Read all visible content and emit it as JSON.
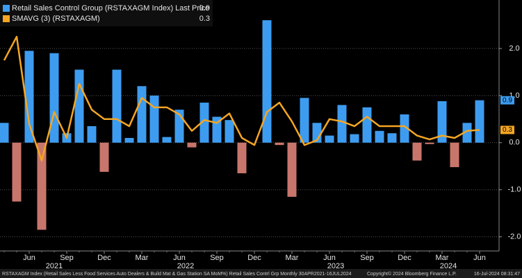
{
  "chart_data": {
    "type": "bar",
    "x": [
      "2021-04",
      "2021-05",
      "2021-06",
      "2021-07",
      "2021-08",
      "2021-09",
      "2021-10",
      "2021-11",
      "2021-12",
      "2022-01",
      "2022-02",
      "2022-03",
      "2022-04",
      "2022-05",
      "2022-06",
      "2022-07",
      "2022-08",
      "2022-09",
      "2022-10",
      "2022-11",
      "2022-12",
      "2023-01",
      "2023-02",
      "2023-03",
      "2023-04",
      "2023-05",
      "2023-06",
      "2023-07",
      "2023-08",
      "2023-09",
      "2023-10",
      "2023-11",
      "2023-12",
      "2024-01",
      "2024-02",
      "2024-03",
      "2024-04",
      "2024-05",
      "2024-06"
    ],
    "xticks": [
      {
        "value": "2021-06",
        "label": "Jun"
      },
      {
        "value": "2021-09",
        "label": "Sep"
      },
      {
        "value": "2021-12",
        "label": "Dec"
      },
      {
        "value": "2022-03",
        "label": "Mar"
      },
      {
        "value": "2022-06",
        "label": "Jun"
      },
      {
        "value": "2022-09",
        "label": "Sep"
      },
      {
        "value": "2022-12",
        "label": "Dec"
      },
      {
        "value": "2023-03",
        "label": "Mar"
      },
      {
        "value": "2023-06",
        "label": "Jun"
      },
      {
        "value": "2023-09",
        "label": "Sep"
      },
      {
        "value": "2023-12",
        "label": "Dec"
      },
      {
        "value": "2024-03",
        "label": "Mar"
      },
      {
        "value": "2024-06",
        "label": "Jun"
      }
    ],
    "xgroups": [
      "2021",
      "2022",
      "2023",
      "2024"
    ],
    "series": [
      {
        "name": "Retail Sales Control Group (RSTAXAGM Index) Last Price",
        "last_label": "0.9",
        "type": "bar",
        "color": "#3d9cf0",
        "negative_color": "#c8766c",
        "values": [
          0.42,
          -1.25,
          1.95,
          -1.85,
          1.9,
          0.2,
          1.55,
          0.35,
          -0.62,
          1.55,
          0.1,
          1.2,
          1.0,
          0.12,
          0.7,
          -0.1,
          0.85,
          0.55,
          0.48,
          -0.65,
          0.0,
          2.6,
          -0.05,
          -1.15,
          0.95,
          0.42,
          0.15,
          0.8,
          0.18,
          0.75,
          0.25,
          0.2,
          0.6,
          -0.38,
          -0.03,
          0.88,
          -0.52,
          0.42,
          0.9
        ]
      },
      {
        "name": "SMAVG (3) (RSTAXAGM)",
        "last_label": "0.3",
        "type": "line",
        "color": "#f5a623",
        "values": [
          1.75,
          2.25,
          0.4,
          -0.38,
          0.65,
          0.1,
          1.25,
          0.7,
          0.5,
          0.5,
          0.35,
          0.95,
          0.75,
          0.75,
          0.6,
          0.25,
          0.48,
          0.42,
          0.62,
          0.1,
          -0.05,
          0.65,
          0.85,
          0.45,
          -0.05,
          0.05,
          0.5,
          0.45,
          0.35,
          0.55,
          0.35,
          0.35,
          0.35,
          0.15,
          0.07,
          0.15,
          0.1,
          0.25,
          0.27
        ]
      }
    ],
    "ylim": [
      -2.3,
      3.0
    ],
    "yticks": [
      {
        "value": 2,
        "label": "2.0"
      },
      {
        "value": 1,
        "label": "1.0"
      },
      {
        "value": 0,
        "label": "0.0"
      },
      {
        "value": -1,
        "label": "-1.0"
      },
      {
        "value": -2,
        "label": "-2.0"
      }
    ],
    "grid": true,
    "footer": "RSTAXAGM Index (Retail Sales Less Food Services Auto Dealers & Build Mat & Gas Station SA MoM%) Retail Sales Contrl Grp  Monthly 30APR2021-16JUL2024",
    "copyright": "Copyright© 2024 Bloomberg Finance L.P.",
    "timestamp": "16-Jul-2024 08:31:47"
  }
}
